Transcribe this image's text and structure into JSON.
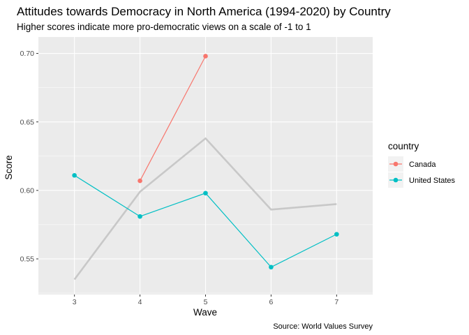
{
  "chart_data": {
    "type": "line",
    "title": "Attitudes towards Democracy in North America (1994-2020) by Country",
    "subtitle": "Higher scores indicate more pro-democratic views on a scale of -1 to 1",
    "xlabel": "Wave",
    "ylabel": "Score",
    "caption": "Source: World Values Survey",
    "xlim": [
      2.45,
      7.55
    ],
    "ylim": [
      0.524,
      0.712
    ],
    "x_ticks": [
      3,
      4,
      5,
      6,
      7
    ],
    "x_tick_labels": [
      "3",
      "4",
      "5",
      "6",
      "7"
    ],
    "y_ticks": [
      0.55,
      0.6,
      0.65,
      0.7
    ],
    "y_tick_labels": [
      "0.55",
      "0.60",
      "0.65",
      "0.70"
    ],
    "grid": true,
    "legend": {
      "title": "country",
      "position": "right"
    },
    "series": [
      {
        "name": "Canada",
        "color": "#F8766D",
        "x": [
          4,
          5
        ],
        "values": [
          0.607,
          0.698
        ]
      },
      {
        "name": "United States",
        "color": "#00BFC4",
        "x": [
          3,
          4,
          5,
          6,
          7
        ],
        "values": [
          0.611,
          0.581,
          0.598,
          0.544,
          0.568
        ]
      }
    ],
    "reference_line": {
      "color": "#c8c8c8",
      "x": [
        3,
        4,
        5,
        6,
        7
      ],
      "values": [
        0.535,
        0.599,
        0.638,
        0.586,
        0.59
      ]
    }
  }
}
